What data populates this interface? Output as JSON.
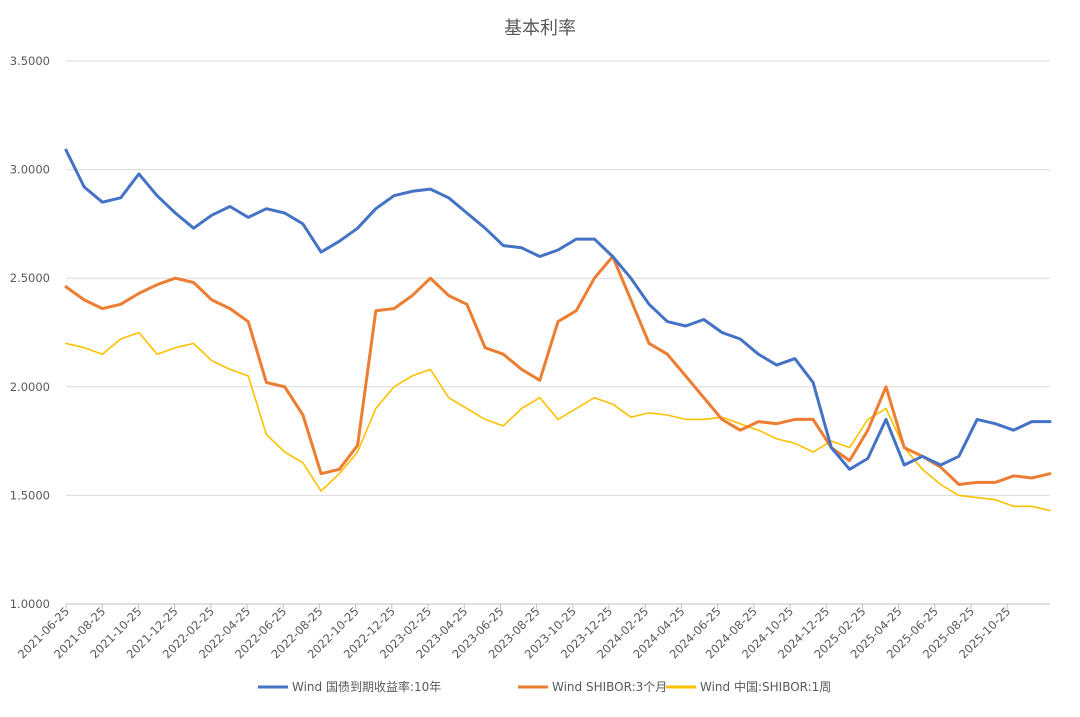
{
  "chart_data": {
    "type": "line",
    "title": "基本利率",
    "xlabel": "",
    "ylabel": "",
    "ylim": [
      1.0,
      3.5
    ],
    "yticks": [
      "1.0000",
      "1.5000",
      "2.0000",
      "2.5000",
      "3.0000",
      "3.5000"
    ],
    "grid": true,
    "legend_position": "bottom",
    "x_tick_labels": [
      "2021-06-25",
      "2021-08-25",
      "2021-10-25",
      "2021-12-25",
      "2022-02-25",
      "2022-04-25",
      "2022-06-25",
      "2022-08-25",
      "2022-10-25",
      "2022-12-25",
      "2023-02-25",
      "2023-04-25",
      "2023-06-25",
      "2023-08-25",
      "2023-10-25",
      "2023-12-25",
      "2024-02-25",
      "2024-04-25",
      "2024-06-25",
      "2024-08-25",
      "2024-10-25",
      "2024-12-25",
      "2025-02-25",
      "2025-04-25",
      "2025-06-25",
      "2025-08-25",
      "2025-10-25"
    ],
    "x": [
      "2021-06",
      "2021-07",
      "2021-08",
      "2021-09",
      "2021-10",
      "2021-11",
      "2021-12",
      "2022-01",
      "2022-02",
      "2022-03",
      "2022-04",
      "2022-05",
      "2022-06",
      "2022-07",
      "2022-08",
      "2022-09",
      "2022-10",
      "2022-11",
      "2022-12",
      "2023-01",
      "2023-02",
      "2023-03",
      "2023-04",
      "2023-05",
      "2023-06",
      "2023-07",
      "2023-08",
      "2023-09",
      "2023-10",
      "2023-11",
      "2023-12",
      "2024-01",
      "2024-02",
      "2024-03",
      "2024-04",
      "2024-05",
      "2024-06",
      "2024-07",
      "2024-08",
      "2024-09",
      "2024-10",
      "2024-11",
      "2024-12",
      "2025-01",
      "2025-02",
      "2025-03",
      "2025-04",
      "2025-05",
      "2025-06",
      "2025-07",
      "2025-08",
      "2025-09",
      "2025-10",
      "2025-11",
      "2025-12"
    ],
    "series": [
      {
        "name": "Wind 国债到期收益率:10年",
        "color": "#4472C4",
        "values": [
          3.09,
          2.92,
          2.85,
          2.87,
          2.98,
          2.88,
          2.8,
          2.73,
          2.79,
          2.83,
          2.78,
          2.82,
          2.8,
          2.75,
          2.62,
          2.67,
          2.73,
          2.82,
          2.88,
          2.9,
          2.91,
          2.87,
          2.8,
          2.73,
          2.65,
          2.64,
          2.6,
          2.63,
          2.68,
          2.68,
          2.6,
          2.5,
          2.38,
          2.3,
          2.28,
          2.31,
          2.25,
          2.22,
          2.15,
          2.1,
          2.13,
          2.02,
          1.72,
          1.62,
          1.67,
          1.85,
          1.64,
          1.68,
          1.64,
          1.68,
          1.85,
          1.83,
          1.8,
          1.84,
          1.84
        ]
      },
      {
        "name": "Wind SHIBOR:3个月",
        "color": "#ED7D31",
        "values": [
          2.46,
          2.4,
          2.36,
          2.38,
          2.43,
          2.47,
          2.5,
          2.48,
          2.4,
          2.36,
          2.3,
          2.02,
          2.0,
          1.87,
          1.6,
          1.62,
          1.73,
          2.35,
          2.36,
          2.42,
          2.5,
          2.42,
          2.38,
          2.18,
          2.15,
          2.08,
          2.03,
          2.3,
          2.35,
          2.5,
          2.6,
          2.4,
          2.2,
          2.15,
          2.05,
          1.95,
          1.85,
          1.8,
          1.84,
          1.83,
          1.85,
          1.85,
          1.72,
          1.66,
          1.8,
          2.0,
          1.72,
          1.68,
          1.63,
          1.55,
          1.56,
          1.56,
          1.59,
          1.58,
          1.6
        ]
      },
      {
        "name": "Wind 中国:SHIBOR:1周",
        "color": "#FFC000",
        "values": [
          2.2,
          2.18,
          2.15,
          2.22,
          2.25,
          2.15,
          2.18,
          2.2,
          2.12,
          2.08,
          2.05,
          1.78,
          1.7,
          1.65,
          1.52,
          1.6,
          1.7,
          1.9,
          2.0,
          2.05,
          2.08,
          1.95,
          1.9,
          1.85,
          1.82,
          1.9,
          1.95,
          1.85,
          1.9,
          1.95,
          1.92,
          1.86,
          1.88,
          1.87,
          1.85,
          1.85,
          1.86,
          1.83,
          1.8,
          1.76,
          1.74,
          1.7,
          1.75,
          1.72,
          1.85,
          1.9,
          1.72,
          1.62,
          1.55,
          1.5,
          1.49,
          1.48,
          1.45,
          1.45,
          1.43
        ]
      }
    ]
  }
}
